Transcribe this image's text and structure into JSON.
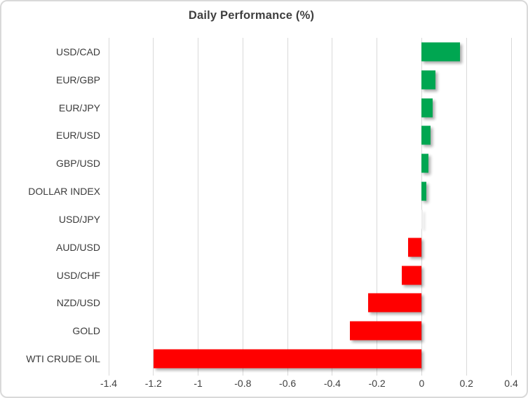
{
  "chart_data": {
    "type": "bar",
    "orientation": "horizontal",
    "title": "Daily Performance (%)",
    "categories": [
      "USD/CAD",
      "EUR/GBP",
      "EUR/JPY",
      "EUR/USD",
      "GBP/USD",
      "DOLLAR INDEX",
      "USD/JPY",
      "AUD/USD",
      "USD/CHF",
      "NZD/USD",
      "GOLD",
      "WTI CRUDE OIL"
    ],
    "values": [
      0.17,
      0.06,
      0.05,
      0.04,
      0.03,
      0.02,
      0.0,
      -0.06,
      -0.09,
      -0.24,
      -0.32,
      -1.2
    ],
    "xlim": [
      -1.4,
      0.4
    ],
    "x_tick_values": [
      -1.4,
      -1.2,
      -1,
      -0.8,
      -0.6,
      -0.4,
      -0.2,
      0,
      0.2,
      0.4
    ],
    "x_tick_labels": [
      "-1.4",
      "-1.2",
      "-1",
      "-0.8",
      "-0.6",
      "-0.4",
      "-0.2",
      "0",
      "0.2",
      "0.4"
    ],
    "grid": "vertical-only",
    "legend": "none",
    "colors": {
      "positive": "#00A651",
      "negative": "#FF0000",
      "zero_bar": "#EDEDED",
      "gridline": "#D9D9D9",
      "category_label": "#3B3B3B",
      "tick_label": "#404040",
      "title": "#3F3F3F",
      "background": "#FFFFFF",
      "border": "#D9D9D9"
    }
  }
}
